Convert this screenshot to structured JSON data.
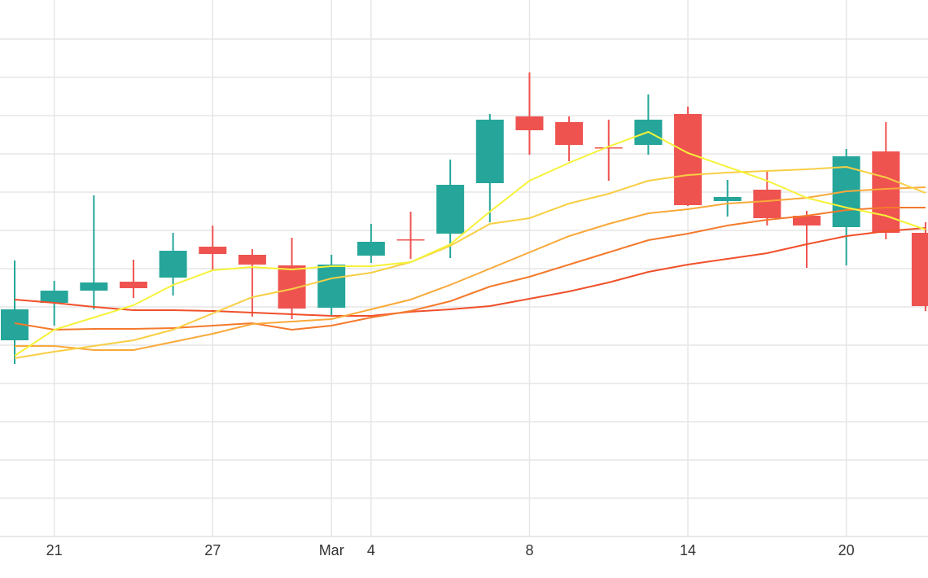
{
  "chart_data": {
    "type": "candlestick",
    "categories": [
      null,
      "21",
      null,
      null,
      null,
      "27",
      null,
      null,
      "Mar",
      "4",
      null,
      null,
      null,
      "8",
      null,
      null,
      null,
      "14",
      null,
      null,
      null,
      "20",
      null,
      null
    ],
    "open": [
      241,
      287,
      302,
      313,
      318,
      356,
      346,
      333,
      281,
      345,
      365,
      372,
      434,
      516,
      509,
      478,
      481,
      519,
      412,
      426,
      394,
      380,
      473,
      373
    ],
    "high": [
      339,
      314,
      419,
      340,
      373,
      382,
      353,
      367,
      346,
      384,
      399,
      463,
      519,
      570,
      516,
      512,
      543,
      528,
      438,
      448,
      400,
      476,
      509,
      386
    ],
    "low": [
      212,
      259,
      279,
      293,
      296,
      327,
      270,
      267,
      271,
      336,
      341,
      342,
      386,
      469,
      461,
      437,
      469,
      406,
      393,
      382,
      330,
      333,
      365,
      277
    ],
    "close": [
      279,
      302,
      312,
      305,
      351,
      347,
      334,
      280,
      334,
      362,
      364,
      432,
      512,
      499,
      481,
      477,
      512,
      407,
      417,
      391,
      382,
      467,
      373,
      283
    ],
    "increasing_color": "#26a69a",
    "decreasing_color": "#ef5350",
    "series": [
      {
        "color": "#f0502a",
        "values": [
          291,
          287,
          282,
          278,
          278,
          277,
          275,
          273,
          271,
          271,
          276,
          279,
          283,
          292,
          301,
          312,
          325,
          334,
          341,
          348,
          359,
          369,
          375,
          379
        ]
      },
      {
        "color": "#f47a2c",
        "values": [
          262,
          254,
          255,
          255,
          256,
          259,
          262,
          254,
          259,
          269,
          277,
          289,
          307,
          319,
          334,
          349,
          364,
          372,
          382,
          389,
          394,
          401,
          404,
          404
        ]
      },
      {
        "color": "#f9a93a",
        "values": [
          234,
          234,
          229,
          229,
          239,
          249,
          261,
          264,
          267,
          279,
          291,
          309,
          329,
          349,
          369,
          384,
          397,
          402,
          409,
          412,
          416,
          424,
          427,
          429
        ]
      },
      {
        "color": "#f7cf45",
        "values": [
          219,
          227,
          234,
          241,
          254,
          274,
          294,
          304,
          317,
          324,
          337,
          357,
          384,
          391,
          409,
          421,
          437,
          444,
          447,
          449,
          451,
          454,
          441,
          422
        ]
      },
      {
        "color": "#f5f23a",
        "values": [
          222,
          254,
          269,
          284,
          309,
          327,
          331,
          328,
          332,
          332,
          337,
          359,
          399,
          437,
          459,
          479,
          497,
          471,
          454,
          437,
          416,
          404,
          394,
          377
        ]
      }
    ],
    "ylim": [
      0,
      659
    ],
    "yticks": [
      0,
      47,
      94,
      141,
      188,
      235,
      282,
      329,
      376,
      423,
      470,
      517,
      564,
      611
    ],
    "grid": true
  }
}
